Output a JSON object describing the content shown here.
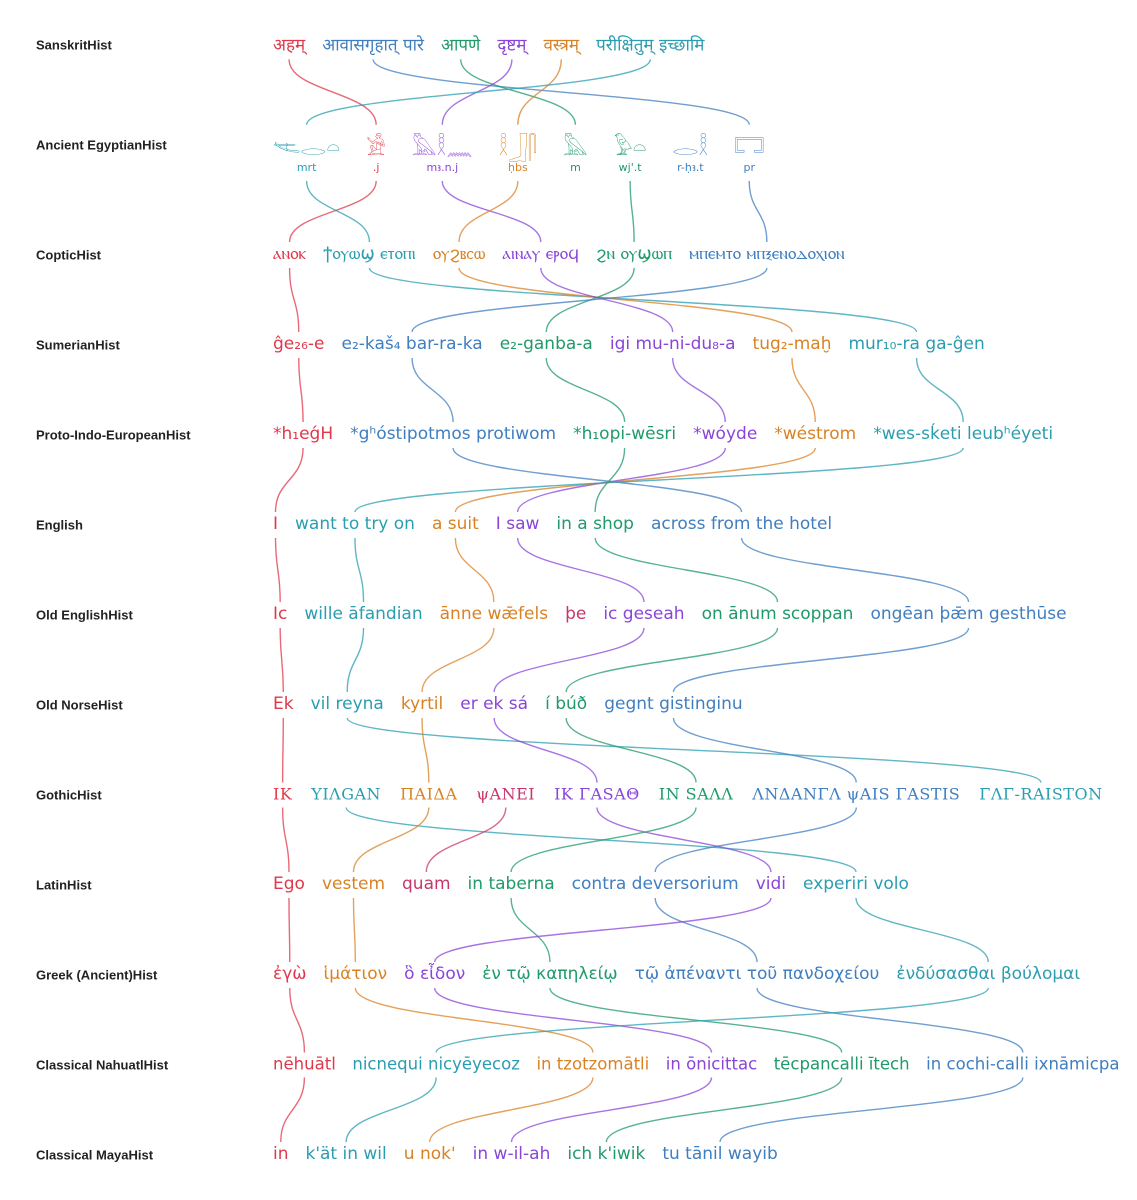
{
  "colors": {
    "red": "#e0384b",
    "blue": "#3f7ec0",
    "green": "#1f9a6a",
    "purple": "#8a45d8",
    "orange": "#d98224",
    "teal": "#2a9db0",
    "crimson": "#c9356b"
  },
  "rows": [
    {
      "id": "Sanskrit",
      "label": "SanskritHist",
      "phrases": [
        {
          "text": "अहम्",
          "color": "red"
        },
        {
          "text": "आवासगृहात् पारे",
          "color": "blue"
        },
        {
          "text": "आपणे",
          "color": "green"
        },
        {
          "text": "दृष्टम्",
          "color": "purple"
        },
        {
          "text": "वस्त्रम्",
          "color": "orange"
        },
        {
          "text": "परीक्षितुम् इच्छामि",
          "color": "teal"
        }
      ]
    },
    {
      "id": "Egyptian",
      "label": "Ancient EgyptianHist",
      "phrases": [
        {
          "text": "𓌻𓂋𓏏",
          "translit": "mrt",
          "color": "teal"
        },
        {
          "text": "𓀀",
          "translit": ".j",
          "color": "red"
        },
        {
          "text": "𓅓𓎛𓈖",
          "translit": "mꜣ.n.j",
          "color": "purple"
        },
        {
          "text": "𓎛𓃀𓋴",
          "translit": "ḥbs",
          "color": "orange"
        },
        {
          "text": "𓅓",
          "translit": "m",
          "color": "green"
        },
        {
          "text": "𓅱𓏏",
          "translit": "wj'.t",
          "color": "green"
        },
        {
          "text": "𓂋𓎛",
          "translit": "r-ḥꜣ.t",
          "color": "blue"
        },
        {
          "text": "𓉐",
          "translit": "pr",
          "color": "blue"
        }
      ]
    },
    {
      "id": "Coptic",
      "label": "CopticHist",
      "phrases": [
        {
          "text": "ⲁⲛⲟⲕ",
          "color": "red"
        },
        {
          "text": "ϯⲟⲩⲱϣ ⲉⲧⲟⲡⲓ",
          "color": "teal"
        },
        {
          "text": "ⲟⲩϩⲃⲥⲱ",
          "color": "orange"
        },
        {
          "text": "ⲁⲓⲛⲁⲩ ⲉⲣⲟϥ",
          "color": "purple"
        },
        {
          "text": "ϩⲛ ⲟⲩϣⲱⲡ",
          "color": "green"
        },
        {
          "text": "ⲙⲡⲉⲙⲧⲟ ⲙⲡⲝⲉⲛⲟⲇⲟⲭⲓⲟⲛ",
          "color": "blue"
        }
      ]
    },
    {
      "id": "Sumerian",
      "label": "SumerianHist",
      "phrases": [
        {
          "text": "ĝe₂₆-e",
          "color": "red"
        },
        {
          "text": "e₂-kaš₄ bar-ra-ka",
          "color": "blue"
        },
        {
          "text": "e₂-ganba-a",
          "color": "green"
        },
        {
          "text": "igi mu-ni-du₈-a",
          "color": "purple"
        },
        {
          "text": "tug₂-maḫ",
          "color": "orange"
        },
        {
          "text": "mur₁₀-ra ga-ĝen",
          "color": "teal"
        }
      ]
    },
    {
      "id": "PIE",
      "label": "Proto-Indo-EuropeanHist",
      "phrases": [
        {
          "text": "*h₁eǵH",
          "color": "red"
        },
        {
          "text": "*gʰóstipotmos protiwom",
          "color": "blue"
        },
        {
          "text": "*h₁opi-wēsri",
          "color": "green"
        },
        {
          "text": "*wóyde",
          "color": "purple"
        },
        {
          "text": "*wéstrom",
          "color": "orange"
        },
        {
          "text": "*wes-sḱeti leubʰéyeti",
          "color": "teal"
        }
      ]
    },
    {
      "id": "English",
      "label": "English",
      "phrases": [
        {
          "text": "I",
          "color": "red"
        },
        {
          "text": "want to try on",
          "color": "teal"
        },
        {
          "text": "a suit",
          "color": "orange"
        },
        {
          "text": "I saw",
          "color": "purple"
        },
        {
          "text": "in a shop",
          "color": "green"
        },
        {
          "text": "across from the hotel",
          "color": "blue"
        }
      ]
    },
    {
      "id": "OldEnglish",
      "label": "Old EnglishHist",
      "phrases": [
        {
          "text": "Ic",
          "color": "red"
        },
        {
          "text": "wille āfandian",
          "color": "teal"
        },
        {
          "text": "ānne wǣfels",
          "color": "orange"
        },
        {
          "text": "þe",
          "color": "crimson"
        },
        {
          "text": "ic geseah",
          "color": "purple"
        },
        {
          "text": "on ānum scoppan",
          "color": "green"
        },
        {
          "text": "ongēan þǣm gesthūse",
          "color": "blue"
        }
      ]
    },
    {
      "id": "OldNorse",
      "label": "Old NorseHist",
      "phrases": [
        {
          "text": "Ek",
          "color": "red"
        },
        {
          "text": "vil reyna",
          "color": "teal"
        },
        {
          "text": "kyrtil",
          "color": "orange"
        },
        {
          "text": "er ek sá",
          "color": "purple"
        },
        {
          "text": "í búð",
          "color": "green"
        },
        {
          "text": "gegnt gistinginu",
          "color": "blue"
        }
      ]
    },
    {
      "id": "Gothic",
      "label": "GothicHist",
      "phrases": [
        {
          "text": "IK",
          "color": "red"
        },
        {
          "text": "ΥΙΛGAN",
          "color": "teal"
        },
        {
          "text": "ΠΑΙΔΑ",
          "color": "orange"
        },
        {
          "text": "ψANEI",
          "color": "crimson"
        },
        {
          "text": "IK ΓASAΘ",
          "color": "purple"
        },
        {
          "text": "IN SAΛΛ",
          "color": "green"
        },
        {
          "text": "ΛNΔANΓΛ ψAIS ΓASTIS",
          "color": "blue"
        },
        {
          "text": "ΓΛΓ-RAISTON",
          "color": "teal"
        }
      ]
    },
    {
      "id": "Latin",
      "label": "LatinHist",
      "phrases": [
        {
          "text": "Ego",
          "color": "red"
        },
        {
          "text": "vestem",
          "color": "orange"
        },
        {
          "text": "quam",
          "color": "crimson"
        },
        {
          "text": "in taberna",
          "color": "green"
        },
        {
          "text": "contra deversorium",
          "color": "blue"
        },
        {
          "text": "vidi",
          "color": "purple"
        },
        {
          "text": "experiri volo",
          "color": "teal"
        }
      ]
    },
    {
      "id": "Greek",
      "label": "Greek (Ancient)Hist",
      "phrases": [
        {
          "text": "ἐγὼ",
          "color": "red"
        },
        {
          "text": "ἱμάτιον",
          "color": "orange"
        },
        {
          "text": "ὃ εἶδον",
          "color": "purple"
        },
        {
          "text": "ἐν τῷ καπηλείῳ",
          "color": "green"
        },
        {
          "text": "τῷ ἀπέναντι τοῦ πανδοχείου",
          "color": "blue"
        },
        {
          "text": "ἐνδύσασθαι βούλομαι",
          "color": "teal"
        }
      ]
    },
    {
      "id": "Nahuatl",
      "label": "Classical NahuatlHist",
      "phrases": [
        {
          "text": "nēhuātl",
          "color": "red"
        },
        {
          "text": "nicnequi nicyēyecoz",
          "color": "teal"
        },
        {
          "text": "in tzotzomātli",
          "color": "orange"
        },
        {
          "text": "in ōnicittac",
          "color": "purple"
        },
        {
          "text": "tēcpancalli ītech",
          "color": "green"
        },
        {
          "text": "in cochi-calli ixnāmicpa",
          "color": "blue"
        }
      ]
    },
    {
      "id": "Maya",
      "label": "Classical MayaHist",
      "phrases": [
        {
          "text": "in",
          "color": "red"
        },
        {
          "text": "k'ät in wil",
          "color": "teal"
        },
        {
          "text": "u nok'",
          "color": "orange"
        },
        {
          "text": "in w-il-ah",
          "color": "purple"
        },
        {
          "text": "ich k'iwik",
          "color": "green"
        },
        {
          "text": "tu tānil wayib",
          "color": "blue"
        }
      ]
    }
  ],
  "links": [
    {
      "rows": [
        0,
        1
      ],
      "from": 0,
      "to": 1
    },
    {
      "rows": [
        0,
        1
      ],
      "from": 1,
      "to": 7
    },
    {
      "rows": [
        0,
        1
      ],
      "from": 2,
      "to": 4
    },
    {
      "rows": [
        0,
        1
      ],
      "from": 3,
      "to": 2
    },
    {
      "rows": [
        0,
        1
      ],
      "from": 4,
      "to": 3
    },
    {
      "rows": [
        0,
        1
      ],
      "from": 5,
      "to": 0
    },
    {
      "rows": [
        1,
        2
      ],
      "from": 1,
      "to": 0
    },
    {
      "rows": [
        1,
        2
      ],
      "from": 0,
      "to": 1
    },
    {
      "rows": [
        1,
        2
      ],
      "from": 2,
      "to": 3
    },
    {
      "rows": [
        1,
        2
      ],
      "from": 3,
      "to": 2
    },
    {
      "rows": [
        1,
        2
      ],
      "from": 5,
      "to": 4
    },
    {
      "rows": [
        1,
        2
      ],
      "from": 7,
      "to": 5
    },
    {
      "rows": [
        2,
        3
      ],
      "from": 0,
      "to": 0
    },
    {
      "rows": [
        2,
        3
      ],
      "from": 1,
      "to": 5
    },
    {
      "rows": [
        2,
        3
      ],
      "from": 2,
      "to": 4
    },
    {
      "rows": [
        2,
        3
      ],
      "from": 3,
      "to": 3
    },
    {
      "rows": [
        2,
        3
      ],
      "from": 4,
      "to": 2
    },
    {
      "rows": [
        2,
        3
      ],
      "from": 5,
      "to": 1
    },
    {
      "rows": [
        3,
        4
      ],
      "from": 0,
      "to": 0
    },
    {
      "rows": [
        3,
        4
      ],
      "from": 1,
      "to": 1
    },
    {
      "rows": [
        3,
        4
      ],
      "from": 2,
      "to": 2
    },
    {
      "rows": [
        3,
        4
      ],
      "from": 3,
      "to": 3
    },
    {
      "rows": [
        3,
        4
      ],
      "from": 4,
      "to": 4
    },
    {
      "rows": [
        3,
        4
      ],
      "from": 5,
      "to": 5
    },
    {
      "rows": [
        4,
        5
      ],
      "from": 0,
      "to": 0
    },
    {
      "rows": [
        4,
        5
      ],
      "from": 1,
      "to": 5
    },
    {
      "rows": [
        4,
        5
      ],
      "from": 2,
      "to": 4
    },
    {
      "rows": [
        4,
        5
      ],
      "from": 3,
      "to": 3
    },
    {
      "rows": [
        4,
        5
      ],
      "from": 4,
      "to": 2
    },
    {
      "rows": [
        4,
        5
      ],
      "from": 5,
      "to": 1
    },
    {
      "rows": [
        5,
        6
      ],
      "from": 0,
      "to": 0
    },
    {
      "rows": [
        5,
        6
      ],
      "from": 1,
      "to": 1
    },
    {
      "rows": [
        5,
        6
      ],
      "from": 2,
      "to": 2
    },
    {
      "rows": [
        5,
        6
      ],
      "from": 3,
      "to": 4
    },
    {
      "rows": [
        5,
        6
      ],
      "from": 4,
      "to": 5
    },
    {
      "rows": [
        5,
        6
      ],
      "from": 5,
      "to": 6
    },
    {
      "rows": [
        6,
        7
      ],
      "from": 0,
      "to": 0
    },
    {
      "rows": [
        6,
        7
      ],
      "from": 1,
      "to": 1
    },
    {
      "rows": [
        6,
        7
      ],
      "from": 2,
      "to": 2
    },
    {
      "rows": [
        6,
        7
      ],
      "from": 4,
      "to": 3
    },
    {
      "rows": [
        6,
        7
      ],
      "from": 5,
      "to": 4
    },
    {
      "rows": [
        6,
        7
      ],
      "from": 6,
      "to": 5
    },
    {
      "rows": [
        7,
        8
      ],
      "from": 0,
      "to": 0
    },
    {
      "rows": [
        7,
        8
      ],
      "from": 1,
      "to": 7
    },
    {
      "rows": [
        7,
        8
      ],
      "from": 2,
      "to": 2
    },
    {
      "rows": [
        7,
        8
      ],
      "from": 3,
      "to": 4
    },
    {
      "rows": [
        7,
        8
      ],
      "from": 4,
      "to": 5
    },
    {
      "rows": [
        7,
        8
      ],
      "from": 5,
      "to": 6
    },
    {
      "rows": [
        8,
        9
      ],
      "from": 0,
      "to": 0
    },
    {
      "rows": [
        8,
        9
      ],
      "from": 1,
      "to": 6
    },
    {
      "rows": [
        8,
        9
      ],
      "from": 2,
      "to": 1
    },
    {
      "rows": [
        8,
        9
      ],
      "from": 3,
      "to": 2
    },
    {
      "rows": [
        8,
        9
      ],
      "from": 4,
      "to": 5
    },
    {
      "rows": [
        8,
        9
      ],
      "from": 5,
      "to": 3
    },
    {
      "rows": [
        8,
        9
      ],
      "from": 6,
      "to": 4
    },
    {
      "rows": [
        9,
        10
      ],
      "from": 0,
      "to": 0
    },
    {
      "rows": [
        9,
        10
      ],
      "from": 1,
      "to": 1
    },
    {
      "rows": [
        9,
        10
      ],
      "from": 3,
      "to": 3
    },
    {
      "rows": [
        9,
        10
      ],
      "from": 4,
      "to": 4
    },
    {
      "rows": [
        9,
        10
      ],
      "from": 5,
      "to": 2
    },
    {
      "rows": [
        9,
        10
      ],
      "from": 6,
      "to": 5
    },
    {
      "rows": [
        10,
        11
      ],
      "from": 0,
      "to": 0
    },
    {
      "rows": [
        10,
        11
      ],
      "from": 1,
      "to": 2
    },
    {
      "rows": [
        10,
        11
      ],
      "from": 2,
      "to": 3
    },
    {
      "rows": [
        10,
        11
      ],
      "from": 3,
      "to": 4
    },
    {
      "rows": [
        10,
        11
      ],
      "from": 4,
      "to": 5
    },
    {
      "rows": [
        10,
        11
      ],
      "from": 5,
      "to": 1
    },
    {
      "rows": [
        11,
        12
      ],
      "from": 0,
      "to": 0
    },
    {
      "rows": [
        11,
        12
      ],
      "from": 1,
      "to": 1
    },
    {
      "rows": [
        11,
        12
      ],
      "from": 2,
      "to": 2
    },
    {
      "rows": [
        11,
        12
      ],
      "from": 3,
      "to": 3
    },
    {
      "rows": [
        11,
        12
      ],
      "from": 4,
      "to": 4
    },
    {
      "rows": [
        11,
        12
      ],
      "from": 5,
      "to": 5
    }
  ]
}
